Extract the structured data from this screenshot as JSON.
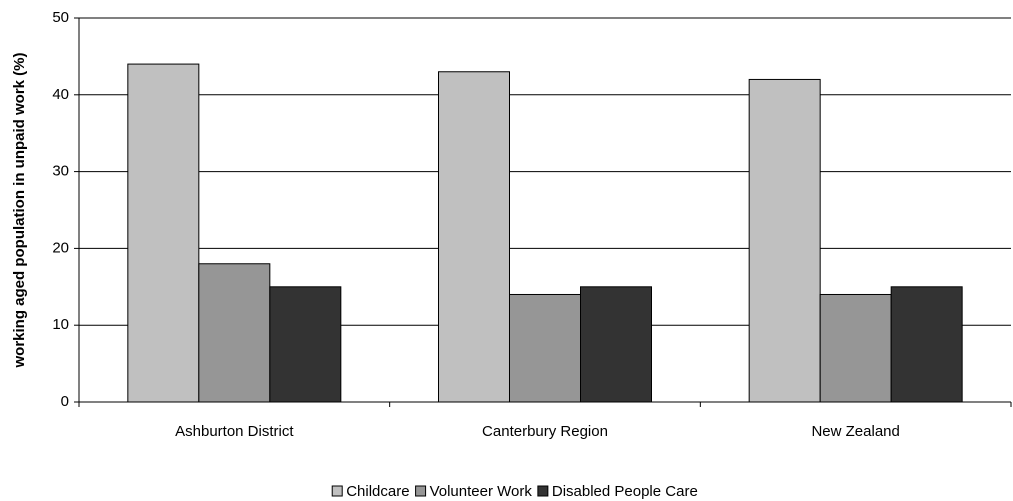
{
  "chart_data": {
    "type": "bar",
    "y_label": "working aged population in unpaid work (%)",
    "categories": [
      "Ashburton District",
      "Canterbury Region",
      "New Zealand"
    ],
    "series": [
      {
        "name": "Childcare",
        "color": "#c0c0c0",
        "values": [
          44,
          43,
          42
        ]
      },
      {
        "name": "Volunteer Work",
        "color": "#969696",
        "values": [
          18,
          14,
          14
        ]
      },
      {
        "name": "Disabled People Care",
        "color": "#333333",
        "values": [
          15,
          15,
          15
        ]
      }
    ],
    "ylim": [
      0,
      50
    ],
    "yticks": [
      0,
      10,
      20,
      30,
      40,
      50
    ],
    "grid": true,
    "legend": "bottom"
  }
}
